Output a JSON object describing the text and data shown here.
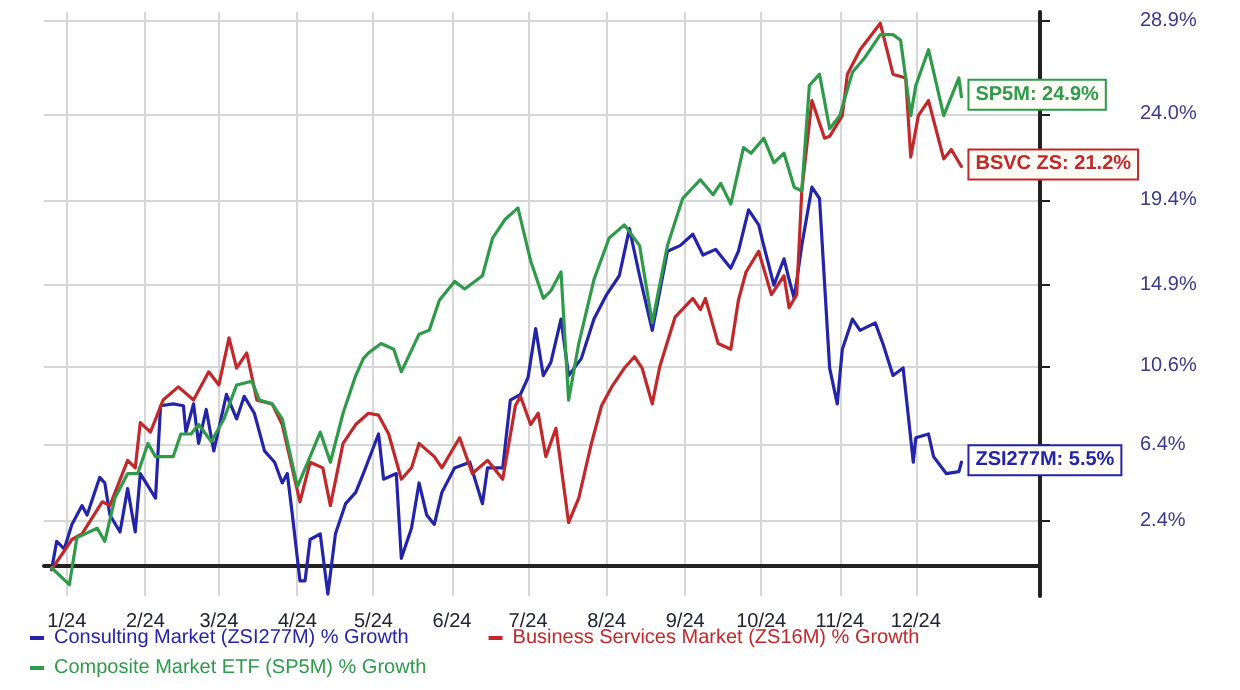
{
  "chart_data": {
    "type": "line",
    "xlim": [
      "2023-12-23",
      "2025-01-19"
    ],
    "xticks": [
      {
        "value": "2024-01-01",
        "label": "1/24"
      },
      {
        "value": "2024-02-01",
        "label": "2/24"
      },
      {
        "value": "2024-03-01",
        "label": "3/24"
      },
      {
        "value": "2024-04-01",
        "label": "4/24"
      },
      {
        "value": "2024-05-01",
        "label": "5/24"
      },
      {
        "value": "2024-06-01",
        "label": "6/24"
      },
      {
        "value": "2024-07-01",
        "label": "7/24"
      },
      {
        "value": "2024-08-01",
        "label": "8/24"
      },
      {
        "value": "2024-09-01",
        "label": "9/24"
      },
      {
        "value": "2024-10-01",
        "label": "10/24"
      },
      {
        "value": "2024-11-01",
        "label": "11/24"
      },
      {
        "value": "2024-12-01",
        "label": "12/24"
      }
    ],
    "ylim": [
      -1.6,
      29.4
    ],
    "yticks": [
      {
        "value": 2.4,
        "label": "2.4%"
      },
      {
        "value": 6.4,
        "label": "6.4%"
      },
      {
        "value": 10.6,
        "label": "10.6%"
      },
      {
        "value": 14.9,
        "label": "14.9%"
      },
      {
        "value": 19.4,
        "label": "19.4%"
      },
      {
        "value": 24.0,
        "label": "24.0%"
      },
      {
        "value": 28.9,
        "label": "28.9%"
      }
    ],
    "grid": true,
    "legend": "bottom",
    "marker": "none",
    "line_style": "solid",
    "series": [
      {
        "name": "Consulting Market (ZSI277M) % Growth",
        "color": "#2424a8",
        "x": [
          "2023-12-26",
          "2023-12-28",
          "2023-12-31",
          "2024-01-03",
          "2024-01-07",
          "2024-01-09",
          "2024-01-14",
          "2024-01-16",
          "2024-01-18",
          "2024-01-22",
          "2024-01-25",
          "2024-01-28",
          "2024-01-30",
          "2024-02-05",
          "2024-02-07",
          "2024-02-12",
          "2024-02-16",
          "2024-02-17",
          "2024-02-20",
          "2024-02-22",
          "2024-02-25",
          "2024-02-28",
          "2024-03-04",
          "2024-03-08",
          "2024-03-11",
          "2024-03-15",
          "2024-03-19",
          "2024-03-23",
          "2024-03-26",
          "2024-03-28",
          "2024-03-30",
          "2024-04-02",
          "2024-04-04",
          "2024-04-06",
          "2024-04-10",
          "2024-04-13",
          "2024-04-16",
          "2024-04-20",
          "2024-04-24",
          "2024-04-27",
          "2024-05-03",
          "2024-05-05",
          "2024-05-10",
          "2024-05-12",
          "2024-05-16",
          "2024-05-19",
          "2024-05-22",
          "2024-05-25",
          "2024-05-28",
          "2024-06-02",
          "2024-06-08",
          "2024-06-13",
          "2024-06-15",
          "2024-06-21",
          "2024-06-24",
          "2024-06-28",
          "2024-07-01",
          "2024-07-04",
          "2024-07-07",
          "2024-07-10",
          "2024-07-14",
          "2024-07-17",
          "2024-07-22",
          "2024-07-27",
          "2024-08-01",
          "2024-08-06",
          "2024-08-10",
          "2024-08-14",
          "2024-08-19",
          "2024-08-25",
          "2024-08-30",
          "2024-09-04",
          "2024-09-08",
          "2024-09-13",
          "2024-09-19",
          "2024-09-22",
          "2024-09-26",
          "2024-09-30",
          "2024-10-02",
          "2024-10-06",
          "2024-10-10",
          "2024-10-12",
          "2024-10-14",
          "2024-10-17",
          "2024-10-21",
          "2024-10-24",
          "2024-10-28",
          "2024-10-31",
          "2024-11-02",
          "2024-11-06",
          "2024-11-09",
          "2024-11-15",
          "2024-11-18",
          "2024-11-22",
          "2024-11-26",
          "2024-11-30",
          "2024-12-01",
          "2024-12-06",
          "2024-12-08",
          "2024-12-13",
          "2024-12-18",
          "2024-12-19"
        ],
        "values": [
          -0.2,
          1.3,
          0.9,
          2.2,
          3.2,
          2.7,
          4.7,
          4.4,
          2.7,
          1.8,
          4.1,
          1.8,
          4.9,
          3.6,
          8.5,
          8.6,
          8.5,
          7.1,
          8.6,
          6.5,
          8.3,
          6.1,
          9.1,
          7.8,
          9.0,
          8.1,
          6.1,
          5.5,
          4.4,
          4.9,
          2.7,
          -0.8,
          -0.8,
          1.4,
          1.7,
          -1.5,
          1.7,
          3.3,
          3.9,
          4.9,
          7.0,
          4.6,
          4.9,
          0.4,
          2.0,
          4.4,
          2.7,
          2.2,
          3.9,
          5.2,
          5.5,
          3.3,
          5.2,
          5.2,
          8.8,
          9.1,
          10.0,
          12.6,
          10.1,
          10.8,
          13.1,
          10.1,
          11.0,
          13.1,
          14.4,
          15.4,
          17.9,
          15.4,
          12.5,
          16.7,
          17.0,
          17.6,
          16.5,
          16.8,
          15.8,
          16.7,
          18.9,
          18.1,
          17.0,
          14.9,
          16.3,
          15.2,
          14.2,
          17.0,
          20.1,
          19.5,
          10.5,
          8.6,
          11.5,
          13.1,
          12.5,
          12.9,
          11.8,
          10.1,
          10.5,
          5.5,
          6.8,
          7.0,
          5.8,
          4.9,
          5.0,
          5.5
        ]
      },
      {
        "name": "Business Services Market (ZS16M) % Growth",
        "color": "#c0282a",
        "x": [
          "2023-12-26",
          "2024-01-03",
          "2024-01-07",
          "2024-01-15",
          "2024-01-18",
          "2024-01-25",
          "2024-01-28",
          "2024-01-30",
          "2024-02-03",
          "2024-02-08",
          "2024-02-14",
          "2024-02-20",
          "2024-02-26",
          "2024-03-01",
          "2024-03-05",
          "2024-03-08",
          "2024-03-12",
          "2024-03-16",
          "2024-03-22",
          "2024-03-26",
          "2024-04-02",
          "2024-04-06",
          "2024-04-11",
          "2024-04-14",
          "2024-04-19",
          "2024-04-24",
          "2024-04-29",
          "2024-05-03",
          "2024-05-07",
          "2024-05-12",
          "2024-05-16",
          "2024-05-19",
          "2024-05-25",
          "2024-05-28",
          "2024-06-04",
          "2024-06-09",
          "2024-06-15",
          "2024-06-21",
          "2024-06-26",
          "2024-06-28",
          "2024-07-02",
          "2024-07-05",
          "2024-07-08",
          "2024-07-12",
          "2024-07-17",
          "2024-07-21",
          "2024-07-26",
          "2024-07-30",
          "2024-08-03",
          "2024-08-08",
          "2024-08-12",
          "2024-08-15",
          "2024-08-19",
          "2024-08-22",
          "2024-08-28",
          "2024-09-04",
          "2024-09-07",
          "2024-09-09",
          "2024-09-14",
          "2024-09-19",
          "2024-09-22",
          "2024-09-25",
          "2024-09-30",
          "2024-10-05",
          "2024-10-10",
          "2024-10-12",
          "2024-10-15",
          "2024-10-17",
          "2024-10-21",
          "2024-10-26",
          "2024-10-28",
          "2024-11-02",
          "2024-11-04",
          "2024-11-09",
          "2024-11-17",
          "2024-11-22",
          "2024-11-27",
          "2024-11-29",
          "2024-12-02",
          "2024-12-06",
          "2024-12-12",
          "2024-12-15",
          "2024-12-19"
        ],
        "values": [
          -0.2,
          1.4,
          1.7,
          3.4,
          3.2,
          5.6,
          5.2,
          7.6,
          7.1,
          8.8,
          9.5,
          8.8,
          10.3,
          9.6,
          12.1,
          10.5,
          11.3,
          8.8,
          8.6,
          7.5,
          3.4,
          5.5,
          5.2,
          3.2,
          6.5,
          7.5,
          8.1,
          8.0,
          7.0,
          4.6,
          5.2,
          6.5,
          5.8,
          5.2,
          6.8,
          4.9,
          5.6,
          4.6,
          8.5,
          9.0,
          7.5,
          8.1,
          5.8,
          7.3,
          2.3,
          3.6,
          6.5,
          8.5,
          9.5,
          10.5,
          11.1,
          10.5,
          8.6,
          10.6,
          13.2,
          14.2,
          13.6,
          14.2,
          11.8,
          11.5,
          14.1,
          15.6,
          16.7,
          14.4,
          15.4,
          13.7,
          14.4,
          19.9,
          24.7,
          22.7,
          22.8,
          23.9,
          26.1,
          27.4,
          28.8,
          26.1,
          25.9,
          21.7,
          23.9,
          24.7,
          21.6,
          22.1,
          21.2
        ]
      },
      {
        "name": "Composite Market ETF (SP5M) % Growth",
        "color": "#2e9a4a",
        "x": [
          "2023-12-26",
          "2024-01-02",
          "2024-01-05",
          "2024-01-13",
          "2024-01-16",
          "2024-01-20",
          "2024-01-25",
          "2024-01-29",
          "2024-02-02",
          "2024-02-05",
          "2024-02-12",
          "2024-02-15",
          "2024-02-19",
          "2024-02-22",
          "2024-02-27",
          "2024-03-03",
          "2024-03-08",
          "2024-03-14",
          "2024-03-17",
          "2024-03-22",
          "2024-03-26",
          "2024-04-01",
          "2024-04-06",
          "2024-04-10",
          "2024-04-14",
          "2024-04-19",
          "2024-04-24",
          "2024-04-27",
          "2024-04-29",
          "2024-05-04",
          "2024-05-09",
          "2024-05-12",
          "2024-05-19",
          "2024-05-23",
          "2024-05-27",
          "2024-06-02",
          "2024-06-06",
          "2024-06-13",
          "2024-06-17",
          "2024-06-22",
          "2024-06-27",
          "2024-07-02",
          "2024-07-07",
          "2024-07-10",
          "2024-07-14",
          "2024-07-17",
          "2024-07-21",
          "2024-07-27",
          "2024-08-02",
          "2024-08-08",
          "2024-08-14",
          "2024-08-19",
          "2024-08-25",
          "2024-08-31",
          "2024-09-07",
          "2024-09-12",
          "2024-09-15",
          "2024-09-19",
          "2024-09-24",
          "2024-09-27",
          "2024-10-02",
          "2024-10-06",
          "2024-10-10",
          "2024-10-14",
          "2024-10-17",
          "2024-10-20",
          "2024-10-24",
          "2024-10-28",
          "2024-11-01",
          "2024-11-06",
          "2024-11-11",
          "2024-11-17",
          "2024-11-22",
          "2024-11-25",
          "2024-11-29",
          "2024-12-01",
          "2024-12-06",
          "2024-12-12",
          "2024-12-18",
          "2024-12-19"
        ],
        "values": [
          -0.1,
          -1.0,
          1.5,
          2.0,
          1.3,
          3.6,
          4.9,
          4.9,
          6.5,
          5.8,
          5.8,
          7.0,
          7.0,
          7.5,
          6.6,
          7.8,
          9.6,
          9.8,
          8.8,
          8.6,
          7.8,
          4.2,
          5.8,
          7.1,
          5.5,
          8.1,
          10.1,
          11.0,
          11.3,
          11.8,
          11.5,
          10.3,
          12.3,
          12.5,
          14.1,
          15.1,
          14.7,
          15.4,
          17.4,
          18.4,
          19.0,
          16.2,
          14.2,
          14.6,
          15.6,
          8.8,
          11.8,
          15.2,
          17.4,
          18.1,
          17.0,
          12.9,
          17.0,
          19.5,
          20.5,
          19.7,
          20.3,
          19.2,
          22.2,
          21.9,
          22.7,
          21.4,
          21.9,
          20.1,
          19.9,
          25.5,
          26.1,
          23.2,
          23.9,
          26.2,
          27.0,
          28.2,
          28.2,
          27.9,
          23.9,
          25.5,
          27.4,
          23.9,
          25.9,
          24.9
        ]
      }
    ],
    "annotations": [
      {
        "text": "ZSI277M: 5.5%",
        "x": "2024-12-19",
        "y": 5.5
      },
      {
        "text": "BSVC ZS: 21.2%",
        "x": "2024-12-19",
        "y": 21.2
      },
      {
        "text": "SP5M: 24.9%",
        "x": "2024-12-19",
        "y": 24.9
      }
    ]
  }
}
